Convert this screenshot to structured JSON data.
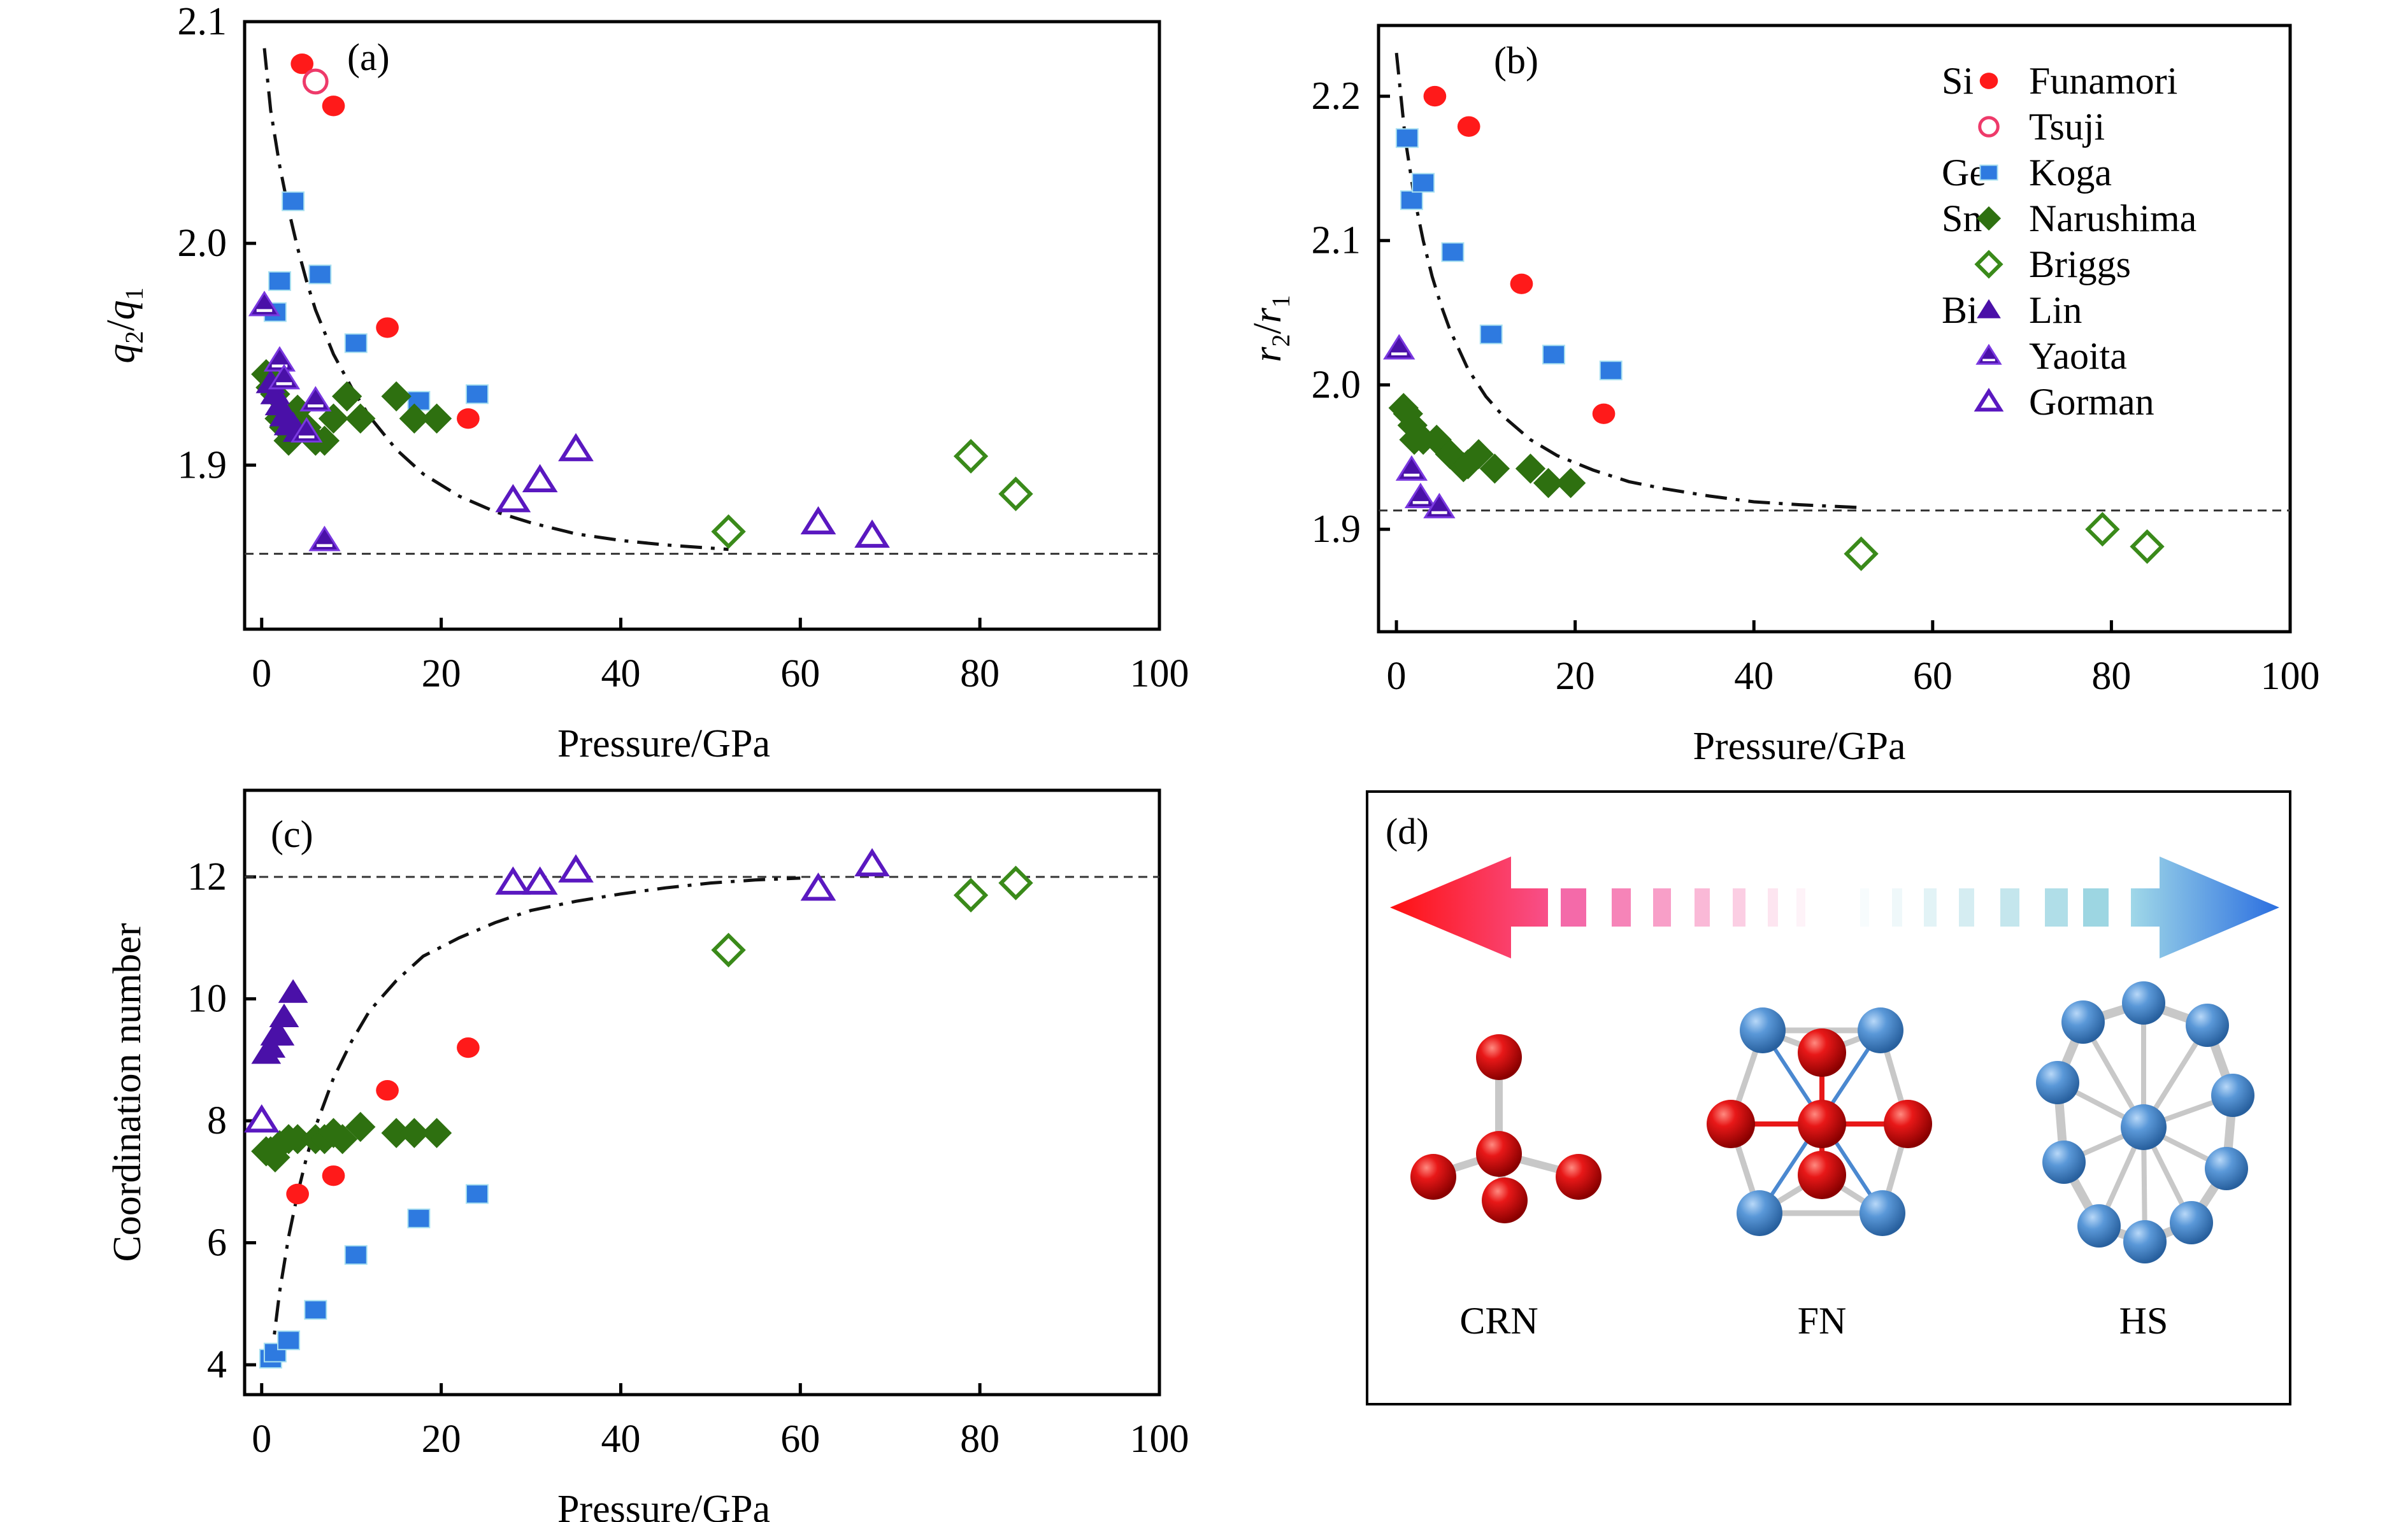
{
  "figure": {
    "panels_order": [
      "a",
      "b",
      "c",
      "d"
    ]
  },
  "legend": {
    "groups": [
      {
        "element": "Si",
        "entries": [
          "Funamori",
          "Tsuji"
        ]
      },
      {
        "element": "Ge",
        "entries": [
          "Koga"
        ]
      },
      {
        "element": "Sn",
        "entries": [
          "Narushima",
          "Briggs"
        ]
      },
      {
        "element": "Bi",
        "entries": [
          "Lin",
          "Yaoita",
          "Gorman"
        ]
      }
    ],
    "entries": [
      {
        "name": "Funamori",
        "element": "Si",
        "marker": "circle",
        "fill": "solid",
        "color": "#ff1a1a"
      },
      {
        "name": "Tsuji",
        "element": "",
        "marker": "circle",
        "fill": "open",
        "color": "#ee3a6a"
      },
      {
        "name": "Koga",
        "element": "Ge",
        "marker": "square",
        "fill": "solid",
        "color": "#2e7ae0"
      },
      {
        "name": "Narushima",
        "element": "Sn",
        "marker": "diamond",
        "fill": "solid",
        "color": "#2e7010"
      },
      {
        "name": "Briggs",
        "element": "",
        "marker": "diamond",
        "fill": "open",
        "color": "#3a8a1a"
      },
      {
        "name": "Lin",
        "element": "Bi",
        "marker": "triangle",
        "fill": "solid",
        "color": "#4a10a8"
      },
      {
        "name": "Yaoita",
        "element": "",
        "marker": "triangle",
        "fill": "half",
        "color": "#4a10a8"
      },
      {
        "name": "Gorman",
        "element": "",
        "marker": "triangle",
        "fill": "open",
        "color": "#5a18c0"
      }
    ],
    "placement": "top-right of panel (b)"
  },
  "chart_data": [
    {
      "id": "a",
      "type": "scatter",
      "panel_label": "(a)",
      "xlabel": "Pressure/GPa",
      "ylabel_main": "q",
      "ylabel_sub1": "2",
      "ylabel_sep": "/",
      "ylabel_main2": "q",
      "ylabel_sub2": "1",
      "xlim": [
        -1.9,
        100
      ],
      "ylim": [
        1.826,
        2.1
      ],
      "xticks": [
        0,
        20,
        40,
        60,
        80,
        100
      ],
      "xtick_labels": [
        "0",
        "20",
        "40",
        "60",
        "80",
        "100"
      ],
      "yticks": [
        1.9,
        2.0,
        2.1
      ],
      "ytick_labels": [
        "1.9",
        "2.0",
        "2.1"
      ],
      "grid": false,
      "reference_line": {
        "y": 1.86,
        "style": "dashed"
      },
      "trend_curve": {
        "style": "dash-dot",
        "points": [
          [
            0.3,
            2.088
          ],
          [
            1,
            2.06
          ],
          [
            2,
            2.035
          ],
          [
            3,
            2.015
          ],
          [
            4,
            1.998
          ],
          [
            5,
            1.983
          ],
          [
            6,
            1.97
          ],
          [
            8,
            1.95
          ],
          [
            10,
            1.935
          ],
          [
            12,
            1.922
          ],
          [
            15,
            1.907
          ],
          [
            18,
            1.896
          ],
          [
            22,
            1.886
          ],
          [
            26,
            1.879
          ],
          [
            30,
            1.874
          ],
          [
            35,
            1.869
          ],
          [
            40,
            1.866
          ],
          [
            45,
            1.864
          ],
          [
            52,
            1.862
          ]
        ]
      },
      "series": [
        {
          "name": "Funamori",
          "points": [
            [
              4.5,
              2.081
            ],
            [
              8,
              2.062
            ],
            [
              14,
              1.962
            ],
            [
              23,
              1.921
            ]
          ]
        },
        {
          "name": "Tsuji",
          "points": [
            [
              6,
              2.073
            ]
          ]
        },
        {
          "name": "Koga",
          "points": [
            [
              1.5,
              1.969
            ],
            [
              2,
              1.983
            ],
            [
              3.5,
              2.019
            ],
            [
              6.5,
              1.986
            ],
            [
              10.5,
              1.955
            ],
            [
              17.5,
              1.929
            ],
            [
              24,
              1.932
            ]
          ]
        },
        {
          "name": "Narushima",
          "points": [
            [
              0.5,
              1.941
            ],
            [
              1,
              1.935
            ],
            [
              1.5,
              1.932
            ],
            [
              2,
              1.921
            ],
            [
              2.5,
              1.917
            ],
            [
              3,
              1.911
            ],
            [
              4,
              1.925
            ],
            [
              5,
              1.917
            ],
            [
              6,
              1.911
            ],
            [
              7,
              1.911
            ],
            [
              8,
              1.921
            ],
            [
              9.5,
              1.931
            ],
            [
              11,
              1.921
            ],
            [
              15,
              1.931
            ],
            [
              17,
              1.921
            ],
            [
              19.5,
              1.921
            ]
          ]
        },
        {
          "name": "Briggs",
          "points": [
            [
              52,
              1.87
            ],
            [
              79,
              1.904
            ],
            [
              84,
              1.887
            ]
          ]
        },
        {
          "name": "Lin",
          "points": [
            [
              1,
              1.937
            ],
            [
              1.5,
              1.932
            ],
            [
              2,
              1.927
            ],
            [
              2.5,
              1.922
            ],
            [
              3,
              1.918
            ],
            [
              3.5,
              1.918
            ],
            [
              4,
              1.915
            ]
          ]
        },
        {
          "name": "Yaoita",
          "points": [
            [
              0.3,
              1.972
            ],
            [
              2,
              1.947
            ],
            [
              2.5,
              1.939
            ],
            [
              5,
              1.915
            ],
            [
              6,
              1.929
            ],
            [
              7,
              1.866
            ]
          ]
        },
        {
          "name": "Gorman",
          "points": [
            [
              28,
              1.884
            ],
            [
              31,
              1.893
            ],
            [
              35,
              1.907
            ],
            [
              62,
              1.874
            ],
            [
              68,
              1.868
            ]
          ]
        }
      ]
    },
    {
      "id": "b",
      "type": "scatter",
      "panel_label": "(b)",
      "xlabel": "Pressure/GPa",
      "ylabel_main": "r",
      "ylabel_sub1": "2",
      "ylabel_sep": "/",
      "ylabel_main2": "r",
      "ylabel_sub2": "1",
      "xlim": [
        -2,
        100
      ],
      "ylim": [
        1.829,
        2.249
      ],
      "xticks": [
        0,
        20,
        40,
        60,
        80,
        100
      ],
      "xtick_labels": [
        "0",
        "20",
        "40",
        "60",
        "80",
        "100"
      ],
      "yticks": [
        1.9,
        2.0,
        2.1,
        2.2
      ],
      "ytick_labels": [
        "1.9",
        "2.0",
        "2.1",
        "2.2"
      ],
      "grid": false,
      "reference_line": {
        "y": 1.913,
        "style": "dashed"
      },
      "trend_curve": {
        "style": "dash-dot",
        "points": [
          [
            0,
            2.23
          ],
          [
            0.5,
            2.2
          ],
          [
            1,
            2.17
          ],
          [
            2,
            2.13
          ],
          [
            3,
            2.1
          ],
          [
            4,
            2.075
          ],
          [
            5,
            2.055
          ],
          [
            6,
            2.038
          ],
          [
            8,
            2.011
          ],
          [
            10,
            1.992
          ],
          [
            12,
            1.978
          ],
          [
            15,
            1.962
          ],
          [
            18,
            1.951
          ],
          [
            22,
            1.941
          ],
          [
            26,
            1.933
          ],
          [
            30,
            1.928
          ],
          [
            35,
            1.923
          ],
          [
            40,
            1.919
          ],
          [
            45,
            1.917
          ],
          [
            52,
            1.915
          ]
        ]
      },
      "series": [
        {
          "name": "Funamori",
          "points": [
            [
              4.3,
              2.2
            ],
            [
              8.1,
              2.179
            ],
            [
              14,
              2.07
            ],
            [
              23.2,
              1.98
            ]
          ]
        },
        {
          "name": "Tsuji",
          "points": []
        },
        {
          "name": "Koga",
          "points": [
            [
              1.2,
              2.171
            ],
            [
              1.7,
              2.128
            ],
            [
              3,
              2.14
            ],
            [
              6.3,
              2.092
            ],
            [
              10.6,
              2.035
            ],
            [
              17.6,
              2.021
            ],
            [
              24,
              2.01
            ]
          ]
        },
        {
          "name": "Narushima",
          "points": [
            [
              0.8,
              1.984
            ],
            [
              1.3,
              1.98
            ],
            [
              1.8,
              1.972
            ],
            [
              2,
              1.962
            ],
            [
              3,
              1.962
            ],
            [
              4.5,
              1.962
            ],
            [
              6,
              1.952
            ],
            [
              7.5,
              1.943
            ],
            [
              8,
              1.945
            ],
            [
              9.2,
              1.952
            ],
            [
              11,
              1.942
            ],
            [
              15,
              1.942
            ],
            [
              17,
              1.932
            ],
            [
              19.5,
              1.932
            ]
          ]
        },
        {
          "name": "Briggs",
          "points": [
            [
              52,
              1.883
            ],
            [
              79,
              1.9
            ],
            [
              84,
              1.888
            ]
          ]
        },
        {
          "name": "Lin",
          "points": []
        },
        {
          "name": "Yaoita",
          "points": [
            [
              0.3,
              2.025
            ],
            [
              1.7,
              1.941
            ],
            [
              2.7,
              1.922
            ],
            [
              4.8,
              1.915
            ]
          ]
        },
        {
          "name": "Gorman",
          "points": []
        }
      ]
    },
    {
      "id": "c",
      "type": "scatter",
      "panel_label": "(c)",
      "xlabel": "Pressure/GPa",
      "ylabel": "Coordination number",
      "xlim": [
        -1.9,
        100
      ],
      "ylim": [
        3.51,
        13.42
      ],
      "xticks": [
        0,
        20,
        40,
        60,
        80,
        100
      ],
      "xtick_labels": [
        "0",
        "20",
        "40",
        "60",
        "80",
        "100"
      ],
      "yticks": [
        4,
        6,
        8,
        10,
        12
      ],
      "ytick_labels": [
        "4",
        "6",
        "8",
        "10",
        "12"
      ],
      "grid": false,
      "reference_line": {
        "y": 12,
        "style": "dashed"
      },
      "trend_curve": {
        "style": "dash-dot",
        "points": [
          [
            1,
            4.0
          ],
          [
            1.5,
            4.6
          ],
          [
            2,
            5.2
          ],
          [
            3,
            6.1
          ],
          [
            4,
            6.8
          ],
          [
            5,
            7.4
          ],
          [
            6,
            7.9
          ],
          [
            8,
            8.7
          ],
          [
            10,
            9.3
          ],
          [
            12,
            9.8
          ],
          [
            15,
            10.3
          ],
          [
            18,
            10.7
          ],
          [
            22,
            11.0
          ],
          [
            26,
            11.25
          ],
          [
            30,
            11.45
          ],
          [
            35,
            11.6
          ],
          [
            40,
            11.72
          ],
          [
            45,
            11.82
          ],
          [
            50,
            11.9
          ],
          [
            55,
            11.95
          ],
          [
            60,
            11.98
          ]
        ]
      },
      "series": [
        {
          "name": "Funamori",
          "points": [
            [
              4,
              6.8
            ],
            [
              8,
              7.1
            ],
            [
              14,
              8.5
            ],
            [
              23,
              9.2
            ]
          ]
        },
        {
          "name": "Tsuji",
          "points": []
        },
        {
          "name": "Koga",
          "points": [
            [
              1,
              4.1
            ],
            [
              1.5,
              4.2
            ],
            [
              3,
              4.4
            ],
            [
              6,
              4.9
            ],
            [
              10.5,
              5.8
            ],
            [
              17.5,
              6.4
            ],
            [
              24,
              6.8
            ]
          ]
        },
        {
          "name": "Narushima",
          "points": [
            [
              0.5,
              7.5
            ],
            [
              1,
              7.5
            ],
            [
              1.5,
              7.4
            ],
            [
              2,
              7.6
            ],
            [
              3,
              7.7
            ],
            [
              4,
              7.7
            ],
            [
              6,
              7.7
            ],
            [
              7,
              7.7
            ],
            [
              8,
              7.8
            ],
            [
              9,
              7.7
            ],
            [
              11,
              7.9
            ],
            [
              15,
              7.8
            ],
            [
              17,
              7.8
            ],
            [
              19.5,
              7.8
            ]
          ]
        },
        {
          "name": "Briggs",
          "points": [
            [
              52,
              10.8
            ],
            [
              79,
              11.7
            ],
            [
              84,
              11.9
            ]
          ]
        },
        {
          "name": "Lin",
          "points": [
            [
              0.5,
              9.1
            ],
            [
              1,
              9.2
            ],
            [
              1.5,
              9.4
            ],
            [
              2,
              9.4
            ],
            [
              2.5,
              9.7
            ],
            [
              3.5,
              10.1
            ]
          ]
        },
        {
          "name": "Yaoita",
          "points": []
        },
        {
          "name": "Gorman",
          "points": [
            [
              0,
              8.0
            ],
            [
              28,
              11.9
            ],
            [
              31,
              11.9
            ],
            [
              35,
              12.1
            ],
            [
              62,
              11.8
            ],
            [
              68,
              12.2
            ]
          ]
        }
      ]
    }
  ],
  "panel_d": {
    "panel_label": "(d)",
    "arrow": {
      "left_color": "#ff1a2a",
      "right_color": "#2a78e0",
      "mid_left_color": "#f8609a",
      "mid_right_color": "#9fd8e4"
    },
    "structures": [
      {
        "label": "CRN",
        "atom_color": "#e01818"
      },
      {
        "label": "FN",
        "atom_color": "#e01818",
        "secondary_color": "#5a98d8"
      },
      {
        "label": "HS",
        "atom_color": "#5a98d8"
      }
    ]
  }
}
